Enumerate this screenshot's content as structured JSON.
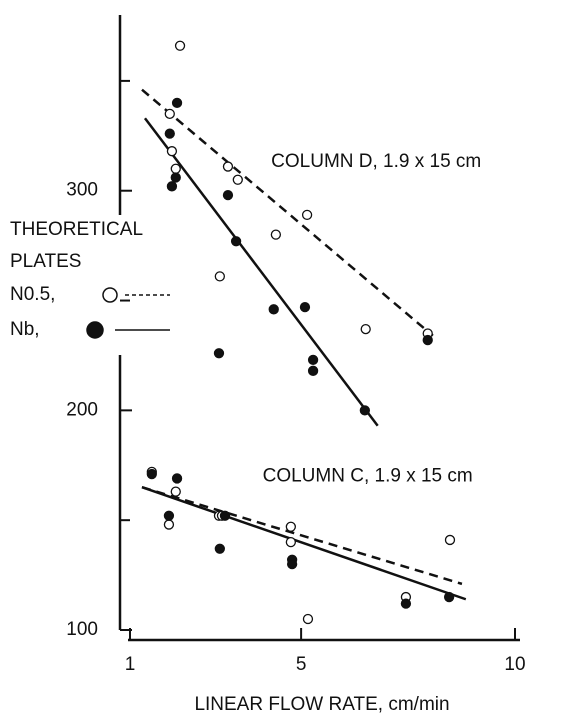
{
  "chart_data": {
    "type": "scatter",
    "ylabel": [
      "THEORETICAL",
      "PLATES"
    ],
    "xlabel": "LINEAR FLOW RATE, cm/min",
    "xlim": [
      1,
      10
    ],
    "xticks": [
      1,
      5,
      10
    ],
    "ylim": [
      100,
      380
    ],
    "yticks": [
      100,
      200,
      300
    ],
    "yminorticks": [
      150,
      250,
      350
    ],
    "annotations": [
      {
        "text": "COLUMN D, 1.9 x 15 cm",
        "x": 4.3,
        "y": 313
      },
      {
        "text": "COLUMN C, 1.9 x 15 cm",
        "x": 4.1,
        "y": 170
      }
    ],
    "series": [
      {
        "name": "N0.5,",
        "filled": false,
        "dash": true,
        "x": [
          2.17,
          1.93,
          1.98,
          2.07,
          3.29,
          3.52,
          4.41,
          5.14,
          3.1,
          6.51,
          7.96,
          1.51,
          2.07,
          1.91,
          3.08,
          3.15,
          4.76,
          4.76,
          5.16,
          7.45,
          8.48
        ],
        "values": [
          366,
          335,
          318,
          310,
          311,
          305,
          280,
          289,
          261,
          237,
          235,
          172,
          163,
          148,
          152,
          152,
          147,
          140,
          105,
          115,
          141
        ]
      },
      {
        "name": "Nb,",
        "filled": true,
        "dash": false,
        "x": [
          2.1,
          1.93,
          2.07,
          1.98,
          3.29,
          3.48,
          4.36,
          5.09,
          3.08,
          5.28,
          5.28,
          6.49,
          7.96,
          1.51,
          2.1,
          1.91,
          3.22,
          3.1,
          4.79,
          4.79,
          7.45,
          8.46
        ],
        "values": [
          340,
          326,
          306,
          302,
          298,
          277,
          246,
          247,
          226,
          223,
          218,
          200,
          232,
          171,
          169,
          152,
          152,
          137,
          132,
          130,
          112,
          115
        ]
      }
    ],
    "fits": [
      {
        "dash": false,
        "x": [
          1.35,
          6.79
        ],
        "y": [
          333,
          193
        ]
      },
      {
        "dash": true,
        "x": [
          1.28,
          8.08
        ],
        "y": [
          346,
          234
        ]
      },
      {
        "dash": false,
        "x": [
          1.28,
          8.85
        ],
        "y": [
          165,
          114
        ]
      },
      {
        "dash": true,
        "x": [
          1.28,
          8.76
        ],
        "y": [
          165,
          121
        ]
      }
    ]
  }
}
